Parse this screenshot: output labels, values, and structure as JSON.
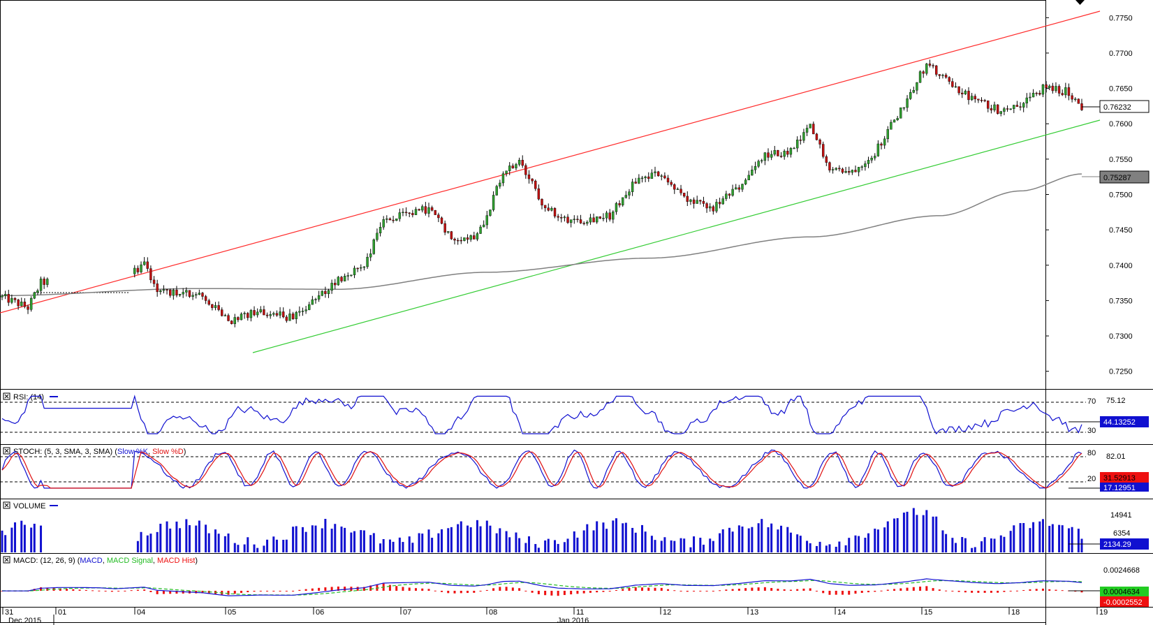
{
  "colors": {
    "up": "#2f9f2f",
    "down": "#c01010",
    "wick": "#000000",
    "ma": "#808080",
    "upper_channel": "#ff2a2a",
    "lower_channel": "#33cc33",
    "rsi": "#1010d0",
    "stoch_k": "#1010d0",
    "stoch_d": "#e01010",
    "volume": "#1010d0",
    "macd": "#1010d0",
    "macd_signal": "#22bb22",
    "macd_hist": "#ee1010",
    "grid_dash": "#000000"
  },
  "price_axis": {
    "ticks": [
      "0.7750",
      "0.7700",
      "0.7650",
      "0.7600",
      "0.7550",
      "0.7500",
      "0.7450",
      "0.7400",
      "0.7350",
      "0.7300",
      "0.7250"
    ],
    "last_price_label": "0.76232",
    "ma_label": "0.75287"
  },
  "time_axis": {
    "day_labels": [
      "31",
      "01",
      "04",
      "05",
      "06",
      "07",
      "08",
      "11",
      "12",
      "13",
      "14",
      "15",
      "18",
      "19"
    ],
    "month_labels": [
      "Dec 2015",
      "Jan 2016"
    ]
  },
  "panes": {
    "rsi": {
      "title": "RSI: (14)",
      "level_high": "70",
      "level_low": "30",
      "scale_top": "75.12",
      "value": "44.13252"
    },
    "stoch": {
      "title_prefix": "STOCH: (5, 3, SMA, 3, SMA) (",
      "k_name": "Slow %K",
      "sep": ", ",
      "d_name": "Slow %D",
      "title_suffix": ")",
      "level_high": "80",
      "level_low": "20",
      "scale_top": "82.01",
      "value_d": "31.52913",
      "value_k": "17.12951"
    },
    "volume": {
      "title": "VOLUME",
      "scale_top": "14941",
      "scale_mid": "6354",
      "value": "2134.29"
    },
    "macd": {
      "title_prefix": "MACD: (12, 26, 9) (",
      "macd_name": "MACD",
      "sep": ", ",
      "signal_name": "MACD Signal",
      "hist_name": "MACD Hist",
      "title_suffix": ")",
      "scale_top": "0.0024668",
      "value_signal": "0.0004634",
      "value_hist": "-0.0002552"
    }
  },
  "chart_data": {
    "type": "candlestick",
    "timeframe_note": "",
    "x_range": [
      "2015-12-31",
      "2016-01-19"
    ],
    "ylim": [
      0.7225,
      0.7775
    ],
    "grid": false,
    "price_series_approx": [
      {
        "x": "2015-12-31",
        "close": 0.736
      },
      {
        "x": "2016-01-01",
        "close": 0.7375
      },
      {
        "x": "2016-01-04",
        "close": 0.737
      },
      {
        "x": "2016-01-04",
        "close": 0.7405
      },
      {
        "x": "2016-01-05",
        "close": 0.736
      },
      {
        "x": "2016-01-05",
        "close": 0.732
      },
      {
        "x": "2016-01-06",
        "close": 0.7335
      },
      {
        "x": "2016-01-07",
        "close": 0.738
      },
      {
        "x": "2016-01-07",
        "close": 0.747
      },
      {
        "x": "2016-01-08",
        "close": 0.748
      },
      {
        "x": "2016-01-08",
        "close": 0.744
      },
      {
        "x": "2016-01-11",
        "close": 0.7545
      },
      {
        "x": "2016-01-11",
        "close": 0.749
      },
      {
        "x": "2016-01-12",
        "close": 0.7465
      },
      {
        "x": "2016-01-12",
        "close": 0.753
      },
      {
        "x": "2016-01-13",
        "close": 0.748
      },
      {
        "x": "2016-01-13",
        "close": 0.752
      },
      {
        "x": "2016-01-14",
        "close": 0.756
      },
      {
        "x": "2016-01-14",
        "close": 0.76
      },
      {
        "x": "2016-01-15",
        "close": 0.753
      },
      {
        "x": "2016-01-15",
        "close": 0.762
      },
      {
        "x": "2016-01-18",
        "close": 0.769
      },
      {
        "x": "2016-01-18",
        "close": 0.763
      },
      {
        "x": "2016-01-19",
        "close": 0.765
      },
      {
        "x": "2016-01-19",
        "close": 0.76232
      }
    ],
    "moving_average_last": 0.75287,
    "rsi": {
      "period": 14,
      "last": 44.13252,
      "levels": [
        30,
        70
      ],
      "scale_max": 75.12
    },
    "stochastic": {
      "last_d": 31.52913,
      "last_k": 17.12951,
      "levels": [
        20,
        80
      ],
      "scale_max": 82.01
    },
    "volume": {
      "last": 2134.29,
      "scale": [
        6354,
        14941
      ]
    },
    "macd": {
      "fast": 12,
      "slow": 26,
      "signal": 9,
      "scale_max": 0.0024668,
      "last_signal": 0.0004634,
      "last_hist": -0.0002552
    }
  }
}
